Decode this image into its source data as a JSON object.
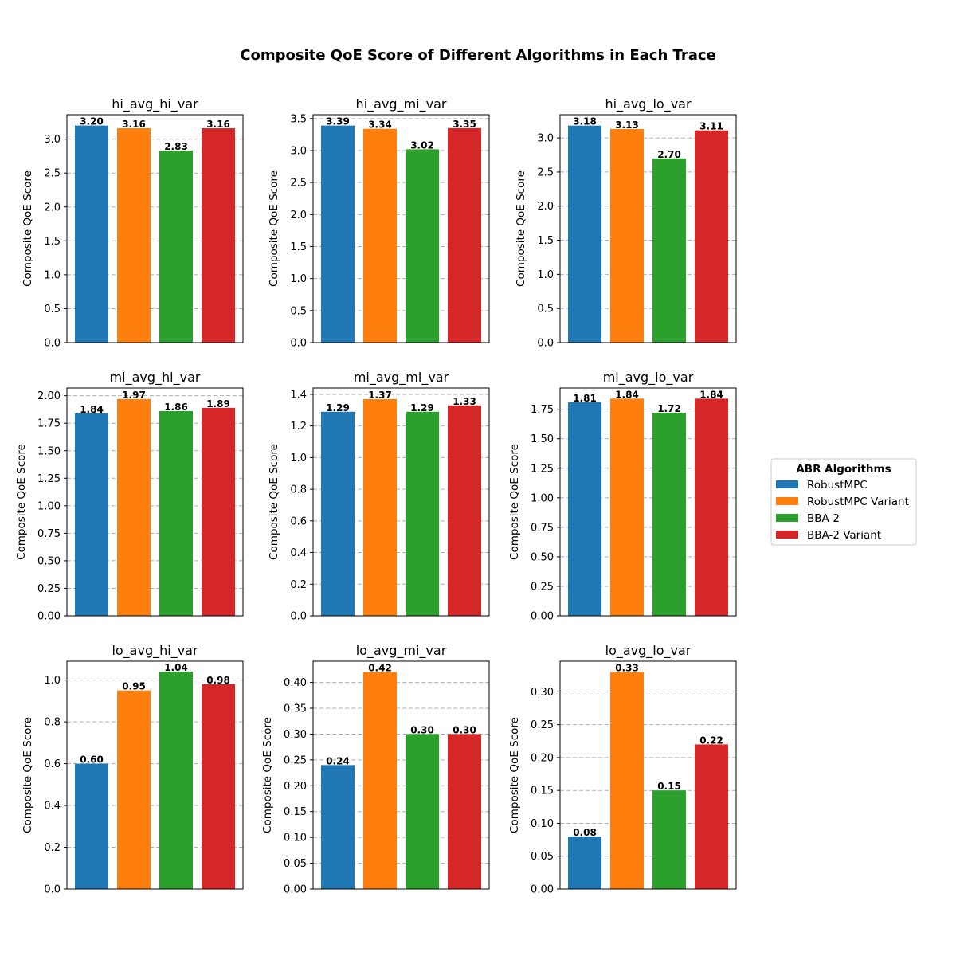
{
  "chart_data": {
    "type": "bar",
    "title": "Composite QoE Score of Different Algorithms in Each Trace",
    "ylabel": "Composite QoE Score",
    "legend": {
      "title": "ABR Algorithms",
      "placement": "right",
      "entries": [
        "RobustMPC",
        "RobustMPC Variant",
        "BBA-2",
        "BBA-2 Variant"
      ]
    },
    "series_colors": [
      "#1f77b4",
      "#ff7f0e",
      "#2ca02c",
      "#d62728"
    ],
    "grid": "y-dashed",
    "subplots": [
      {
        "title": "hi_avg_hi_var",
        "values": [
          3.2,
          3.16,
          2.83,
          3.16
        ],
        "ylim": [
          0,
          3.36
        ],
        "yticks": [
          0.0,
          0.5,
          1.0,
          1.5,
          2.0,
          2.5,
          3.0
        ],
        "tick_decimals": 1
      },
      {
        "title": "hi_avg_mi_var",
        "values": [
          3.39,
          3.34,
          3.02,
          3.35
        ],
        "ylim": [
          0,
          3.56
        ],
        "yticks": [
          0.0,
          0.5,
          1.0,
          1.5,
          2.0,
          2.5,
          3.0,
          3.5
        ],
        "tick_decimals": 1
      },
      {
        "title": "hi_avg_lo_var",
        "values": [
          3.18,
          3.13,
          2.7,
          3.11
        ],
        "ylim": [
          0,
          3.34
        ],
        "yticks": [
          0.0,
          0.5,
          1.0,
          1.5,
          2.0,
          2.5,
          3.0
        ],
        "tick_decimals": 1
      },
      {
        "title": "mi_avg_hi_var",
        "values": [
          1.84,
          1.97,
          1.86,
          1.89
        ],
        "ylim": [
          0,
          2.07
        ],
        "yticks": [
          0.0,
          0.25,
          0.5,
          0.75,
          1.0,
          1.25,
          1.5,
          1.75,
          2.0
        ],
        "tick_decimals": 2
      },
      {
        "title": "mi_avg_mi_var",
        "values": [
          1.29,
          1.37,
          1.29,
          1.33
        ],
        "ylim": [
          0,
          1.44
        ],
        "yticks": [
          0.0,
          0.2,
          0.4,
          0.6,
          0.8,
          1.0,
          1.2,
          1.4
        ],
        "tick_decimals": 1
      },
      {
        "title": "mi_avg_lo_var",
        "values": [
          1.81,
          1.84,
          1.72,
          1.84
        ],
        "ylim": [
          0,
          1.93
        ],
        "yticks": [
          0.0,
          0.25,
          0.5,
          0.75,
          1.0,
          1.25,
          1.5,
          1.75
        ],
        "tick_decimals": 2
      },
      {
        "title": "lo_avg_hi_var",
        "values": [
          0.6,
          0.95,
          1.04,
          0.98
        ],
        "ylim": [
          0,
          1.09
        ],
        "yticks": [
          0.0,
          0.2,
          0.4,
          0.6,
          0.8,
          1.0
        ],
        "tick_decimals": 1
      },
      {
        "title": "lo_avg_mi_var",
        "values": [
          0.24,
          0.42,
          0.3,
          0.3
        ],
        "ylim": [
          0,
          0.441
        ],
        "yticks": [
          0.0,
          0.05,
          0.1,
          0.15,
          0.2,
          0.25,
          0.3,
          0.35,
          0.4
        ],
        "tick_decimals": 2
      },
      {
        "title": "lo_avg_lo_var",
        "values": [
          0.08,
          0.33,
          0.15,
          0.22
        ],
        "ylim": [
          0,
          0.3465
        ],
        "yticks": [
          0.0,
          0.05,
          0.1,
          0.15,
          0.2,
          0.25,
          0.3
        ],
        "tick_decimals": 2
      }
    ]
  }
}
